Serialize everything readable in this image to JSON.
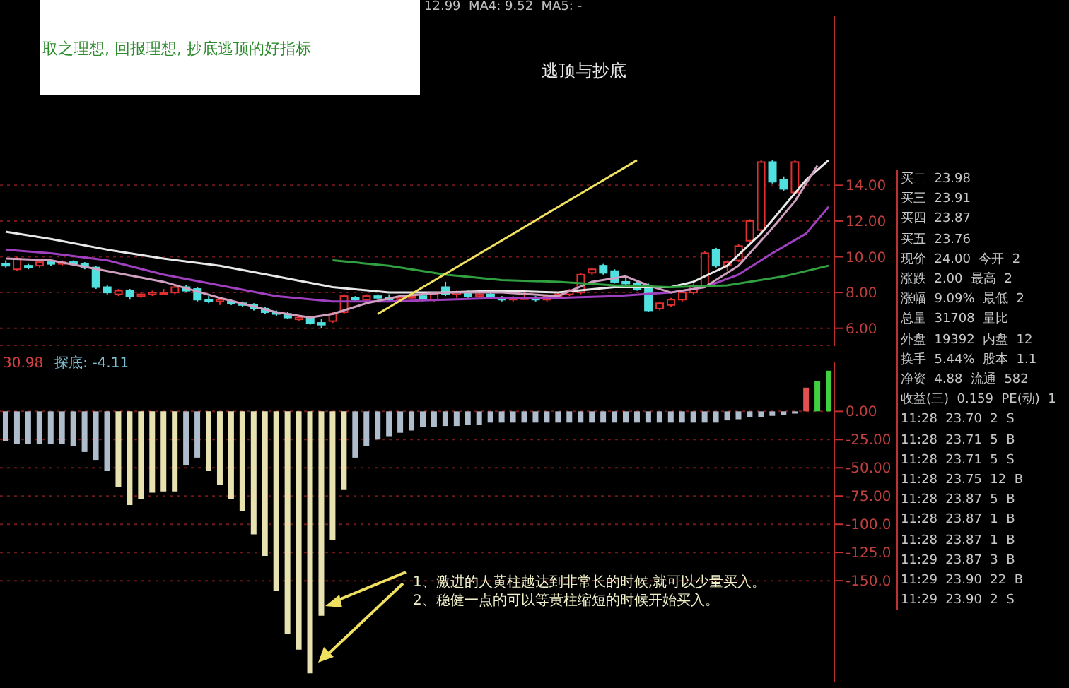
{
  "chart_data": [
    {
      "type": "candlestick",
      "title": "取之理想, 回报理想, 抄底逃顶的好指标",
      "subtitle": "逃顶与抄底",
      "annotations": [
        "12.99  MA4: 9.52  MA5: -"
      ],
      "categories": [
        null,
        null,
        null,
        null,
        null,
        null,
        null,
        null,
        null,
        null,
        null,
        null,
        null,
        null,
        null,
        null,
        null,
        null,
        null,
        null,
        null,
        null,
        null,
        null,
        null,
        null,
        null,
        null,
        null,
        null,
        null,
        null,
        null,
        null,
        null,
        null,
        null,
        null,
        null,
        null,
        null,
        null,
        null,
        null,
        null,
        null,
        null,
        null,
        null,
        null,
        null,
        null,
        null,
        null,
        null,
        null,
        null,
        null,
        null,
        null,
        null,
        null,
        null,
        null,
        null,
        null,
        null,
        null,
        null,
        null,
        null,
        null,
        null,
        null
      ],
      "ohlc": [
        [
          9.6,
          9.8,
          9.4,
          9.5
        ],
        [
          9.3,
          10.0,
          9.2,
          9.9
        ],
        [
          9.5,
          9.6,
          9.3,
          9.4
        ],
        [
          9.5,
          9.8,
          9.4,
          9.7
        ],
        [
          9.7,
          9.8,
          9.5,
          9.6
        ],
        [
          9.6,
          9.8,
          9.5,
          9.7
        ],
        [
          9.7,
          9.8,
          9.5,
          9.6
        ],
        [
          9.6,
          9.7,
          9.3,
          9.4
        ],
        [
          9.4,
          9.5,
          8.2,
          8.3
        ],
        [
          8.3,
          8.4,
          7.9,
          8.0
        ],
        [
          7.9,
          8.2,
          7.8,
          8.1
        ],
        [
          8.1,
          8.2,
          7.6,
          7.8
        ],
        [
          7.8,
          8.0,
          7.7,
          7.9
        ],
        [
          7.9,
          8.1,
          7.8,
          8.0
        ],
        [
          8.0,
          8.2,
          7.9,
          8.0
        ],
        [
          8.0,
          8.4,
          7.9,
          8.3
        ],
        [
          8.3,
          8.4,
          8.0,
          8.1
        ],
        [
          8.2,
          8.3,
          7.5,
          7.6
        ],
        [
          7.6,
          7.8,
          7.4,
          7.5
        ],
        [
          7.5,
          7.7,
          7.3,
          7.6
        ],
        [
          7.5,
          7.6,
          7.3,
          7.4
        ],
        [
          7.4,
          7.5,
          7.2,
          7.3
        ],
        [
          7.3,
          7.4,
          7.0,
          7.1
        ],
        [
          7.1,
          7.2,
          6.8,
          6.9
        ],
        [
          6.9,
          7.0,
          6.7,
          6.8
        ],
        [
          6.8,
          6.9,
          6.5,
          6.6
        ],
        [
          6.5,
          6.7,
          6.4,
          6.6
        ],
        [
          6.6,
          6.7,
          6.2,
          6.3
        ],
        [
          6.3,
          6.5,
          6.0,
          6.2
        ],
        [
          6.4,
          6.9,
          6.3,
          6.8
        ],
        [
          6.9,
          7.9,
          6.8,
          7.8
        ],
        [
          7.7,
          7.8,
          7.5,
          7.6
        ],
        [
          7.6,
          7.9,
          7.5,
          7.8
        ],
        [
          7.8,
          7.9,
          7.6,
          7.7
        ],
        [
          7.7,
          7.9,
          7.5,
          7.6
        ],
        [
          7.6,
          7.8,
          7.5,
          7.7
        ],
        [
          7.7,
          7.9,
          7.6,
          7.8
        ],
        [
          7.8,
          7.9,
          7.5,
          7.6
        ],
        [
          7.6,
          8.0,
          7.5,
          7.9
        ],
        [
          8.3,
          8.6,
          7.8,
          7.9
        ],
        [
          7.9,
          8.1,
          7.7,
          8.0
        ],
        [
          8.0,
          8.1,
          7.7,
          7.8
        ],
        [
          7.8,
          8.0,
          7.7,
          7.9
        ],
        [
          7.9,
          8.0,
          7.7,
          7.8
        ],
        [
          7.7,
          7.8,
          7.5,
          7.6
        ],
        [
          7.6,
          7.8,
          7.5,
          7.7
        ],
        [
          7.7,
          8.0,
          7.6,
          7.7
        ],
        [
          7.7,
          7.8,
          7.5,
          7.6
        ],
        [
          7.6,
          7.9,
          7.5,
          7.8
        ],
        [
          7.8,
          8.0,
          7.7,
          7.9
        ],
        [
          7.9,
          8.2,
          7.8,
          8.1
        ],
        [
          8.0,
          9.1,
          7.9,
          9.0
        ],
        [
          9.1,
          9.4,
          9.0,
          9.3
        ],
        [
          9.5,
          9.6,
          9.0,
          9.1
        ],
        [
          9.2,
          9.3,
          8.5,
          8.6
        ],
        [
          8.6,
          8.8,
          8.4,
          8.5
        ],
        [
          8.5,
          8.6,
          8.1,
          8.2
        ],
        [
          8.4,
          8.5,
          6.9,
          7.0
        ],
        [
          7.1,
          7.5,
          7.0,
          7.4
        ],
        [
          7.3,
          7.7,
          7.2,
          7.6
        ],
        [
          7.6,
          8.1,
          7.5,
          8.0
        ],
        [
          8.0,
          8.5,
          7.9,
          8.4
        ],
        [
          8.4,
          10.3,
          8.3,
          10.2
        ],
        [
          10.4,
          10.5,
          9.4,
          9.5
        ],
        [
          9.5,
          9.8,
          9.2,
          9.7
        ],
        [
          9.8,
          10.7,
          9.7,
          10.6
        ],
        [
          10.9,
          12.1,
          10.8,
          12.0
        ],
        [
          11.5,
          15.4,
          11.4,
          15.3
        ],
        [
          15.3,
          15.4,
          14.1,
          14.2
        ],
        [
          14.3,
          14.5,
          13.7,
          13.8
        ],
        [
          13.6,
          15.4,
          13.5,
          15.3
        ],
        null,
        null,
        null
      ],
      "series": [
        {
          "type": "line",
          "color": "#e8e8e8",
          "values": [
            11.4,
            null,
            null,
            null,
            11.0,
            null,
            null,
            null,
            null,
            10.4,
            null,
            null,
            null,
            null,
            9.9,
            null,
            null,
            null,
            null,
            9.5,
            null,
            null,
            null,
            null,
            8.9,
            null,
            null,
            null,
            null,
            8.3,
            null,
            null,
            null,
            null,
            8.0,
            null,
            null,
            null,
            null,
            8.0,
            null,
            null,
            null,
            null,
            8.1,
            null,
            null,
            null,
            null,
            8.0,
            null,
            null,
            null,
            null,
            8.3,
            null,
            null,
            null,
            null,
            8.3,
            null,
            8.6,
            null,
            null,
            9.5,
            null,
            null,
            11.3,
            null,
            12.8,
            null,
            14.3,
            null,
            15.4
          ]
        },
        {
          "type": "line",
          "color": "#a040c0",
          "values": [
            10.4,
            null,
            null,
            null,
            10.2,
            null,
            null,
            null,
            null,
            9.8,
            null,
            null,
            null,
            null,
            9.0,
            null,
            null,
            null,
            null,
            8.4,
            null,
            null,
            null,
            null,
            7.8,
            null,
            null,
            null,
            null,
            7.5,
            null,
            null,
            null,
            null,
            7.5,
            null,
            null,
            null,
            null,
            7.6,
            null,
            null,
            null,
            null,
            7.7,
            null,
            null,
            null,
            null,
            7.7,
            null,
            null,
            null,
            null,
            7.8,
            null,
            null,
            null,
            null,
            8.0,
            null,
            null,
            8.3,
            null,
            null,
            9.0,
            null,
            null,
            10.2,
            null,
            null,
            11.3,
            null,
            12.8
          ]
        },
        {
          "type": "line",
          "color": "#d0a0c0",
          "values": [
            9.9,
            null,
            null,
            null,
            9.8,
            null,
            null,
            null,
            null,
            9.2,
            null,
            null,
            null,
            null,
            8.6,
            null,
            null,
            null,
            null,
            7.7,
            null,
            null,
            null,
            null,
            6.9,
            null,
            null,
            6.6,
            null,
            6.8,
            null,
            null,
            7.4,
            null,
            null,
            7.8,
            null,
            null,
            null,
            8.0,
            null,
            null,
            null,
            null,
            8.0,
            null,
            null,
            null,
            null,
            7.8,
            null,
            null,
            8.6,
            null,
            null,
            8.9,
            null,
            8.4,
            null,
            8.0,
            null,
            null,
            8.3,
            null,
            null,
            9.5,
            null,
            null,
            11.6,
            null,
            13.1,
            null,
            15.1,
            null
          ]
        },
        {
          "type": "line",
          "color": "#30a040",
          "values": [
            null,
            null,
            null,
            null,
            null,
            null,
            null,
            null,
            null,
            null,
            null,
            null,
            null,
            null,
            null,
            null,
            null,
            null,
            null,
            null,
            null,
            null,
            null,
            null,
            null,
            null,
            null,
            null,
            null,
            9.8,
            null,
            null,
            null,
            null,
            9.5,
            null,
            null,
            null,
            null,
            9.0,
            null,
            null,
            null,
            null,
            8.7,
            null,
            null,
            null,
            null,
            8.6,
            null,
            null,
            null,
            null,
            8.4,
            null,
            null,
            null,
            null,
            8.3,
            null,
            null,
            null,
            null,
            8.4,
            null,
            null,
            null,
            null,
            8.9,
            null,
            null,
            null,
            9.5
          ]
        },
        {
          "type": "line",
          "color": "#f0e060",
          "values": [
            null,
            null,
            null,
            null,
            null,
            null,
            null,
            null,
            null,
            null,
            null,
            null,
            null,
            null,
            null,
            null,
            null,
            null,
            null,
            null,
            null,
            null,
            null,
            null,
            null,
            null,
            null,
            null,
            null,
            null,
            null,
            null,
            null,
            6.8,
            null,
            null,
            null,
            null,
            null,
            null,
            null,
            null,
            null,
            null,
            null,
            null,
            null,
            null,
            null,
            null,
            null,
            null,
            null,
            null,
            null,
            null,
            15.4,
            null,
            null,
            null,
            null,
            null,
            null,
            null,
            null,
            null,
            null,
            null,
            null,
            null,
            null,
            null,
            null,
            null
          ]
        }
      ],
      "ylim": [
        5,
        23.5
      ],
      "yticks": [
        {
          "value": 6,
          "label": "6.00"
        },
        {
          "value": 8,
          "label": "8.00"
        },
        {
          "value": 10,
          "label": "10.00"
        },
        {
          "value": 12,
          "label": "12.00"
        },
        {
          "value": 14,
          "label": "14.00"
        }
      ],
      "grid": "y",
      "tick_labels": "y"
    },
    {
      "type": "bar",
      "annotations": [
        "30.98",
        "探底: -4.11",
        "1、激进的人黄柱越达到非常长的时候,就可以少量买入。",
        "2、稳健一点的可以等黄柱缩短的时候开始买入。"
      ],
      "categories": [
        null,
        null,
        null,
        null,
        null,
        null,
        null,
        null,
        null,
        null,
        null,
        null,
        null,
        null,
        null,
        null,
        null,
        null,
        null,
        null,
        null,
        null,
        null,
        null,
        null,
        null,
        null,
        null,
        null,
        null,
        null,
        null,
        null,
        null,
        null,
        null,
        null,
        null,
        null,
        null,
        null,
        null,
        null,
        null,
        null,
        null,
        null,
        null,
        null,
        null,
        null,
        null,
        null,
        null,
        null,
        null,
        null,
        null,
        null,
        null,
        null,
        null,
        null,
        null,
        null,
        null,
        null,
        null,
        null,
        null,
        null,
        null,
        null,
        null
      ],
      "values": [
        -26,
        -29,
        -29,
        -29,
        -29,
        -29,
        -31,
        -36,
        -43,
        -53,
        -67,
        -83,
        -78,
        -72,
        -71,
        -71,
        -48,
        -41,
        -53,
        -65,
        -78,
        -88,
        -109,
        -128,
        -159,
        -197,
        -211,
        -232,
        -181,
        -114,
        -69,
        -41,
        -31,
        -25,
        -22,
        -19,
        -17,
        -14,
        -14,
        -13,
        -13,
        -12,
        -12,
        -10,
        -10,
        -10,
        -10,
        -10,
        -10,
        -10,
        -10,
        -10,
        -10,
        -10,
        -10,
        -10,
        -10,
        -10,
        -10,
        -10,
        -10,
        -10,
        -10,
        -10,
        -8,
        -7,
        -5,
        -5,
        -4,
        -3,
        -2,
        21,
        27,
        36
      ],
      "colors": [
        "#aebccc",
        "#aebccc",
        "#aebccc",
        "#aebccc",
        "#aebccc",
        "#aebccc",
        "#aebccc",
        "#aebccc",
        "#aebccc",
        "#aebccc",
        "#e8e2b0",
        "#e8e2b0",
        "#e8e2b0",
        "#e8e2b0",
        "#e8e2b0",
        "#e8e2b0",
        "#aebccc",
        "#aebccc",
        "#e8e2b0",
        "#e8e2b0",
        "#e8e2b0",
        "#e8e2b0",
        "#e8e2b0",
        "#e8e2b0",
        "#e8e2b0",
        "#e8e2b0",
        "#e8e2b0",
        "#e8e2b0",
        "#e8e2b0",
        "#e8e2b0",
        "#e8e2b0",
        "#aebccc",
        "#aebccc",
        "#aebccc",
        "#aebccc",
        "#aebccc",
        "#aebccc",
        "#aebccc",
        "#aebccc",
        "#aebccc",
        "#aebccc",
        "#aebccc",
        "#aebccc",
        "#aebccc",
        "#aebccc",
        "#aebccc",
        "#aebccc",
        "#aebccc",
        "#aebccc",
        "#aebccc",
        "#aebccc",
        "#aebccc",
        "#aebccc",
        "#aebccc",
        "#aebccc",
        "#aebccc",
        "#aebccc",
        "#aebccc",
        "#aebccc",
        "#aebccc",
        "#aebccc",
        "#aebccc",
        "#aebccc",
        "#aebccc",
        "#aebccc",
        "#aebccc",
        "#aebccc",
        "#aebccc",
        "#aebccc",
        "#aebccc",
        "#aebccc",
        "#e05050",
        "#40d040",
        "#40d040"
      ],
      "ylim": [
        -240,
        44
      ],
      "yticks": [
        {
          "value": -150,
          "label": "-150.0"
        },
        {
          "value": -125,
          "label": "-125.0"
        },
        {
          "value": -100,
          "label": "-100.0"
        },
        {
          "value": -75,
          "label": "-75.00"
        },
        {
          "value": -50,
          "label": "-50.00"
        },
        {
          "value": -25,
          "label": "-25.00"
        },
        {
          "value": 0,
          "label": "0.00"
        }
      ],
      "grid": "y",
      "tick_labels": "y"
    },
    {
      "type": "other",
      "annotations": [
        "买二  23.98",
        "买三  23.91",
        "买四  23.87",
        "买五  23.76",
        "现价  24.00  今开  2",
        "涨跌  2.00  最高  2",
        "涨幅  9.09%  最低  2",
        "总量  31708  量比",
        "外盘  19392  内盘  12",
        "换手  5.44%  股本  1.1",
        "净资  4.88  流通  582",
        "收益(三)  0.159  PE(动)  1",
        "11:28  23.70  2  S",
        "11:28  23.71  5  B",
        "11:28  23.71  5  S",
        "11:28  23.75  12  B",
        "11:28  23.87  5  B",
        "11:28  23.87  1  B",
        "11:28  23.87  1  B",
        "11:29  23.87  3  B",
        "11:29  23.90  22  B",
        "11:29  23.90  2  S"
      ]
    }
  ]
}
